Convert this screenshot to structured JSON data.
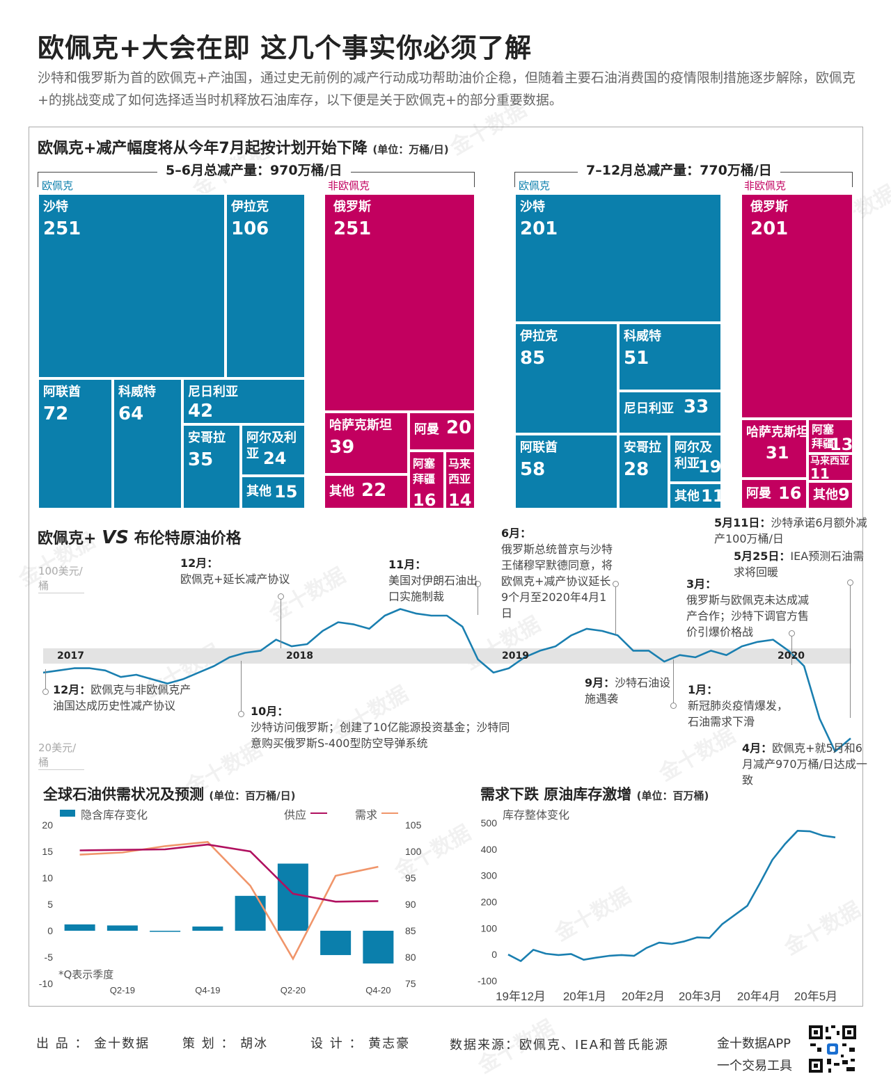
{
  "title": "欧佩克+大会在即 这几个事实你必须了解",
  "intro": "沙特和俄罗斯为首的欧佩克+产油国，通过史无前例的减产行动成功帮助油价企稳，但随着主要石油消费国的疫情限制措施逐步解除，欧佩克+的挑战变成了如何选择适当时机释放石油库存，以下便是关于欧佩克+的部分重要数据。",
  "colors": {
    "opec": "#0b7fac",
    "non_opec": "#c2005f",
    "supply": "#b0105f",
    "demand": "#f0956a"
  },
  "watermark": "金十数据",
  "treemap": {
    "title": "欧佩克+减产幅度将从今年7月起按计划开始下降",
    "unit": "(单位：万桶/日)",
    "left": {
      "total_label": "5–6月总减产量：970万桶/日",
      "opec_label": "欧佩克",
      "non_opec_label": "非欧佩克"
    },
    "right": {
      "total_label": "7–12月总减产量：770万桶/日",
      "opec_label": "欧佩克",
      "non_opec_label": "非欧佩克"
    }
  },
  "brent": {
    "title_a": "欧佩克+",
    "title_vs": "VS",
    "title_b": "布伦特原油价格",
    "y_top_label": "100美元/桶",
    "y_bottom_label": "20美元/桶",
    "years": [
      "2017",
      "2018",
      "2019",
      "2020"
    ],
    "annotations": {
      "a1_date": "12月：",
      "a1_text": "欧佩克与非欧佩克产油国达成历史性减产协议",
      "a2_date": "10月：",
      "a2_text": "沙特访问俄罗斯；创建了10亿能源投资基金；沙特同意购买俄罗斯S-400型防空导弹系统",
      "a3_date": "12月：",
      "a3_text": "欧佩克+延长减产协议",
      "a4_date": "11月：",
      "a4_text": "美国对伊朗石油出口实施制裁",
      "a5_date": "6月：",
      "a5_text": "俄罗斯总统普京与沙特王储穆罕默德同意，将欧佩克+减产协议延长9个月至2020年4月1日",
      "a6_date": "9月：",
      "a6_text": "沙特石油设施遇袭",
      "a7_date": "3月：",
      "a7_text": "俄罗斯与欧佩克未达成减产合作；沙特下调官方售价引爆价格战",
      "a8_date": "1月：",
      "a8_text": "新冠肺炎疫情爆发，石油需求下滑",
      "a9_date": "4月：",
      "a9_text": "欧佩克+就5月和6月减产970万桶/日达成一致",
      "a10_date": "5月11日：",
      "a10_text": "沙特承诺6月额外减产100万桶/日",
      "a11_date": "5月25日：",
      "a11_text": "IEA预测石油需求将回暖"
    }
  },
  "supply_demand": {
    "title": "全球石油供需状况及预测",
    "unit": "(单位：百万桶/日)",
    "legend_bar": "隐含库存变化",
    "legend_supply": "供应",
    "legend_demand": "需求",
    "footnote": "*Q表示季度"
  },
  "inventory": {
    "title": "需求下跌 原油库存激增",
    "unit": "(单位：百万桶)",
    "ylabel": "库存整体变化"
  },
  "footer": {
    "producer": "出 品 ： 金十数据",
    "planner": "策 划 ： 胡冰",
    "designer": "设 计 ： 黄志豪",
    "source": "数据来源：欧佩克、IEA和普氏能源",
    "app": "金十数据APP",
    "slogan": "一个交易工具"
  },
  "chart_data": [
    {
      "type": "treemap",
      "title": "5–6月总减产量：970万桶/日",
      "groups": [
        {
          "name": "欧佩克",
          "items": [
            {
              "name": "沙特",
              "value": 251
            },
            {
              "name": "伊拉克",
              "value": 106
            },
            {
              "name": "阿联酋",
              "value": 72
            },
            {
              "name": "科威特",
              "value": 64
            },
            {
              "name": "尼日利亚",
              "value": 42
            },
            {
              "name": "安哥拉",
              "value": 35
            },
            {
              "name": "阿尔及利亚",
              "value": 24
            },
            {
              "name": "其他",
              "value": 15
            }
          ]
        },
        {
          "name": "非欧佩克",
          "items": [
            {
              "name": "俄罗斯",
              "value": 251
            },
            {
              "name": "哈萨克斯坦",
              "value": 39
            },
            {
              "name": "阿曼",
              "value": 20
            },
            {
              "name": "其他",
              "value": 22
            },
            {
              "name": "阿塞拜疆",
              "value": 16
            },
            {
              "name": "马来西亚",
              "value": 14
            }
          ]
        }
      ]
    },
    {
      "type": "treemap",
      "title": "7–12月总减产量：770万桶/日",
      "groups": [
        {
          "name": "欧佩克",
          "items": [
            {
              "name": "沙特",
              "value": 201
            },
            {
              "name": "伊拉克",
              "value": 85
            },
            {
              "name": "科威特",
              "value": 51
            },
            {
              "name": "尼日利亚",
              "value": 33
            },
            {
              "name": "阿联酋",
              "value": 58
            },
            {
              "name": "安哥拉",
              "value": 28
            },
            {
              "name": "阿尔及利亚",
              "value": 19
            },
            {
              "name": "其他",
              "value": 11
            }
          ]
        },
        {
          "name": "非欧佩克",
          "items": [
            {
              "name": "俄罗斯",
              "value": 201
            },
            {
              "name": "哈萨克斯坦",
              "value": 31
            },
            {
              "name": "阿塞拜疆",
              "value": 13
            },
            {
              "name": "马来西亚",
              "value": 11
            },
            {
              "name": "阿曼",
              "value": 16
            },
            {
              "name": "其他",
              "value": 9
            }
          ]
        }
      ]
    },
    {
      "type": "line",
      "title": "欧佩克+ VS 布伦特原油价格",
      "ylabel": "美元/桶",
      "ylim": [
        20,
        100
      ],
      "x_start": "2016-12",
      "x_end": "2020-05",
      "values": [
        54,
        55,
        56,
        56,
        55,
        52,
        53,
        51,
        49,
        51,
        54,
        57,
        61,
        63,
        64,
        69,
        66,
        67,
        73,
        77,
        76,
        74,
        80,
        83,
        81,
        80,
        80,
        75,
        60,
        54,
        56,
        61,
        64,
        66,
        71,
        74,
        73,
        71,
        64,
        64,
        59,
        62,
        61,
        64,
        62,
        66,
        68,
        69,
        64,
        57,
        33,
        18,
        24
      ]
    },
    {
      "type": "bar",
      "title": "全球石油供需状况及预测",
      "categories": [
        "Q1-19",
        "Q2-19",
        "Q3-19",
        "Q4-19",
        "Q1-20",
        "Q2-20",
        "Q3-20",
        "Q4-20"
      ],
      "tick_labels": [
        "Q2-19",
        "Q4-19",
        "Q2-20",
        "Q4-20"
      ],
      "ylim_left": [
        -10,
        20
      ],
      "ylim_right": [
        75,
        105
      ],
      "series": [
        {
          "name": "隐含库存变化",
          "type": "bar",
          "axis": "left",
          "values": [
            1.2,
            1.0,
            -0.2,
            0.8,
            6.6,
            12.7,
            -4.6,
            -6.2
          ]
        },
        {
          "name": "供应",
          "type": "line",
          "axis": "right",
          "values": [
            100.2,
            100.3,
            100.4,
            101.3,
            100.0,
            92.0,
            90.5,
            90.6
          ]
        },
        {
          "name": "需求",
          "type": "line",
          "axis": "right",
          "values": [
            99.4,
            99.8,
            101.0,
            101.8,
            93.5,
            79.7,
            95.4,
            97.1
          ]
        }
      ]
    },
    {
      "type": "line",
      "title": "需求下跌 原油库存激增",
      "ylabel": "库存整体变化",
      "ylim": [
        -100,
        500
      ],
      "tick_labels": [
        "19年12月",
        "20年1月",
        "20年2月",
        "20年3月",
        "20年4月",
        "20年5月"
      ],
      "values": [
        0,
        -25,
        18,
        3,
        -2,
        2,
        -20,
        -12,
        -5,
        -2,
        -5,
        25,
        45,
        40,
        50,
        65,
        63,
        115,
        150,
        185,
        270,
        360,
        420,
        470,
        468,
        452,
        445
      ]
    }
  ]
}
